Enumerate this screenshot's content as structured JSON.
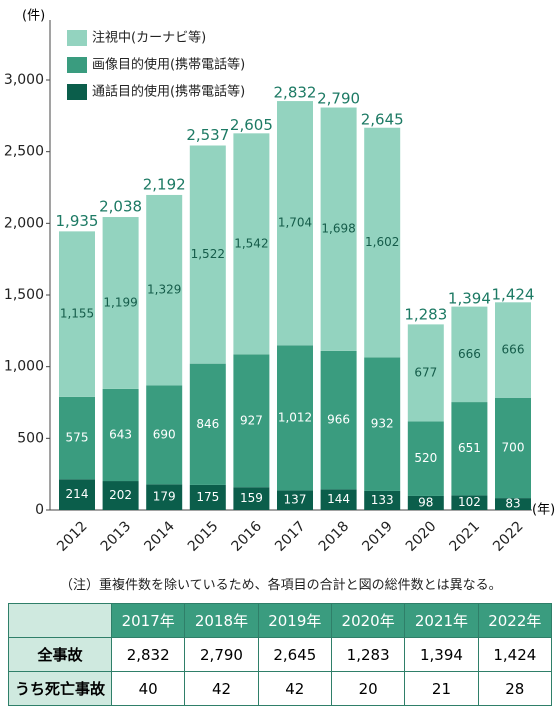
{
  "chart_data": {
    "type": "stacked_bar",
    "y_unit_label": "(件)",
    "x_unit_label": "(年)",
    "categories": [
      "2012",
      "2013",
      "2014",
      "2015",
      "2016",
      "2017",
      "2018",
      "2019",
      "2020",
      "2021",
      "2022"
    ],
    "series": [
      {
        "name": "注視中(カーナビ等)",
        "color": "#93d3bf",
        "values": [
          1155,
          1199,
          1329,
          1522,
          1542,
          1704,
          1698,
          1602,
          677,
          666,
          666
        ],
        "value_labels": [
          "1,155",
          "1,199",
          "1,329",
          "1,522",
          "1,542",
          "1,704",
          "1,698",
          "1,602",
          "677",
          "666",
          "666"
        ]
      },
      {
        "name": "画像目的使用(携帯電話等)",
        "color": "#3a9c7f",
        "values": [
          575,
          643,
          690,
          846,
          927,
          1012,
          966,
          932,
          520,
          651,
          700
        ],
        "value_labels": [
          "575",
          "643",
          "690",
          "846",
          "927",
          "1,012",
          "966",
          "932",
          "520",
          "651",
          "700"
        ]
      },
      {
        "name": "通話目的使用(携帯電話等)",
        "color": "#0b5e4b",
        "values": [
          214,
          202,
          179,
          175,
          159,
          137,
          144,
          133,
          98,
          102,
          83
        ],
        "value_labels": [
          "214",
          "202",
          "179",
          "175",
          "159",
          "137",
          "144",
          "133",
          "98",
          "102",
          "83"
        ]
      }
    ],
    "totals": {
      "values": [
        1935,
        2038,
        2192,
        2537,
        2605,
        2832,
        2790,
        2645,
        1283,
        1394,
        1424
      ],
      "value_labels": [
        "1,935",
        "2,038",
        "2,192",
        "2,537",
        "2,605",
        "2,832",
        "2,790",
        "2,645",
        "1,283",
        "1,394",
        "1,424"
      ]
    },
    "ylim": [
      0,
      3000
    ],
    "yticks": [
      0,
      500,
      {
        "value": 1000,
        "label": "1,000"
      },
      {
        "value": 1500,
        "label": "1,500"
      },
      {
        "value": 2000,
        "label": "2,000"
      },
      {
        "value": 2500,
        "label": "2,500"
      },
      {
        "value": 3000,
        "label": "3,000"
      }
    ],
    "grid": false,
    "legend": "top-left"
  },
  "note": "（注）重複件数を除いているため、各項目の合計と図の総件数とは異なる。",
  "table": {
    "header": [
      "2017年",
      "2018年",
      "2019年",
      "2020年",
      "2021年",
      "2022年"
    ],
    "rows": [
      {
        "label": "全事故",
        "values": [
          "2,832",
          "2,790",
          "2,645",
          "1,283",
          "1,394",
          "1,424"
        ]
      },
      {
        "label": "うち死亡事故",
        "values": [
          "40",
          "42",
          "42",
          "20",
          "21",
          "28"
        ]
      }
    ]
  }
}
